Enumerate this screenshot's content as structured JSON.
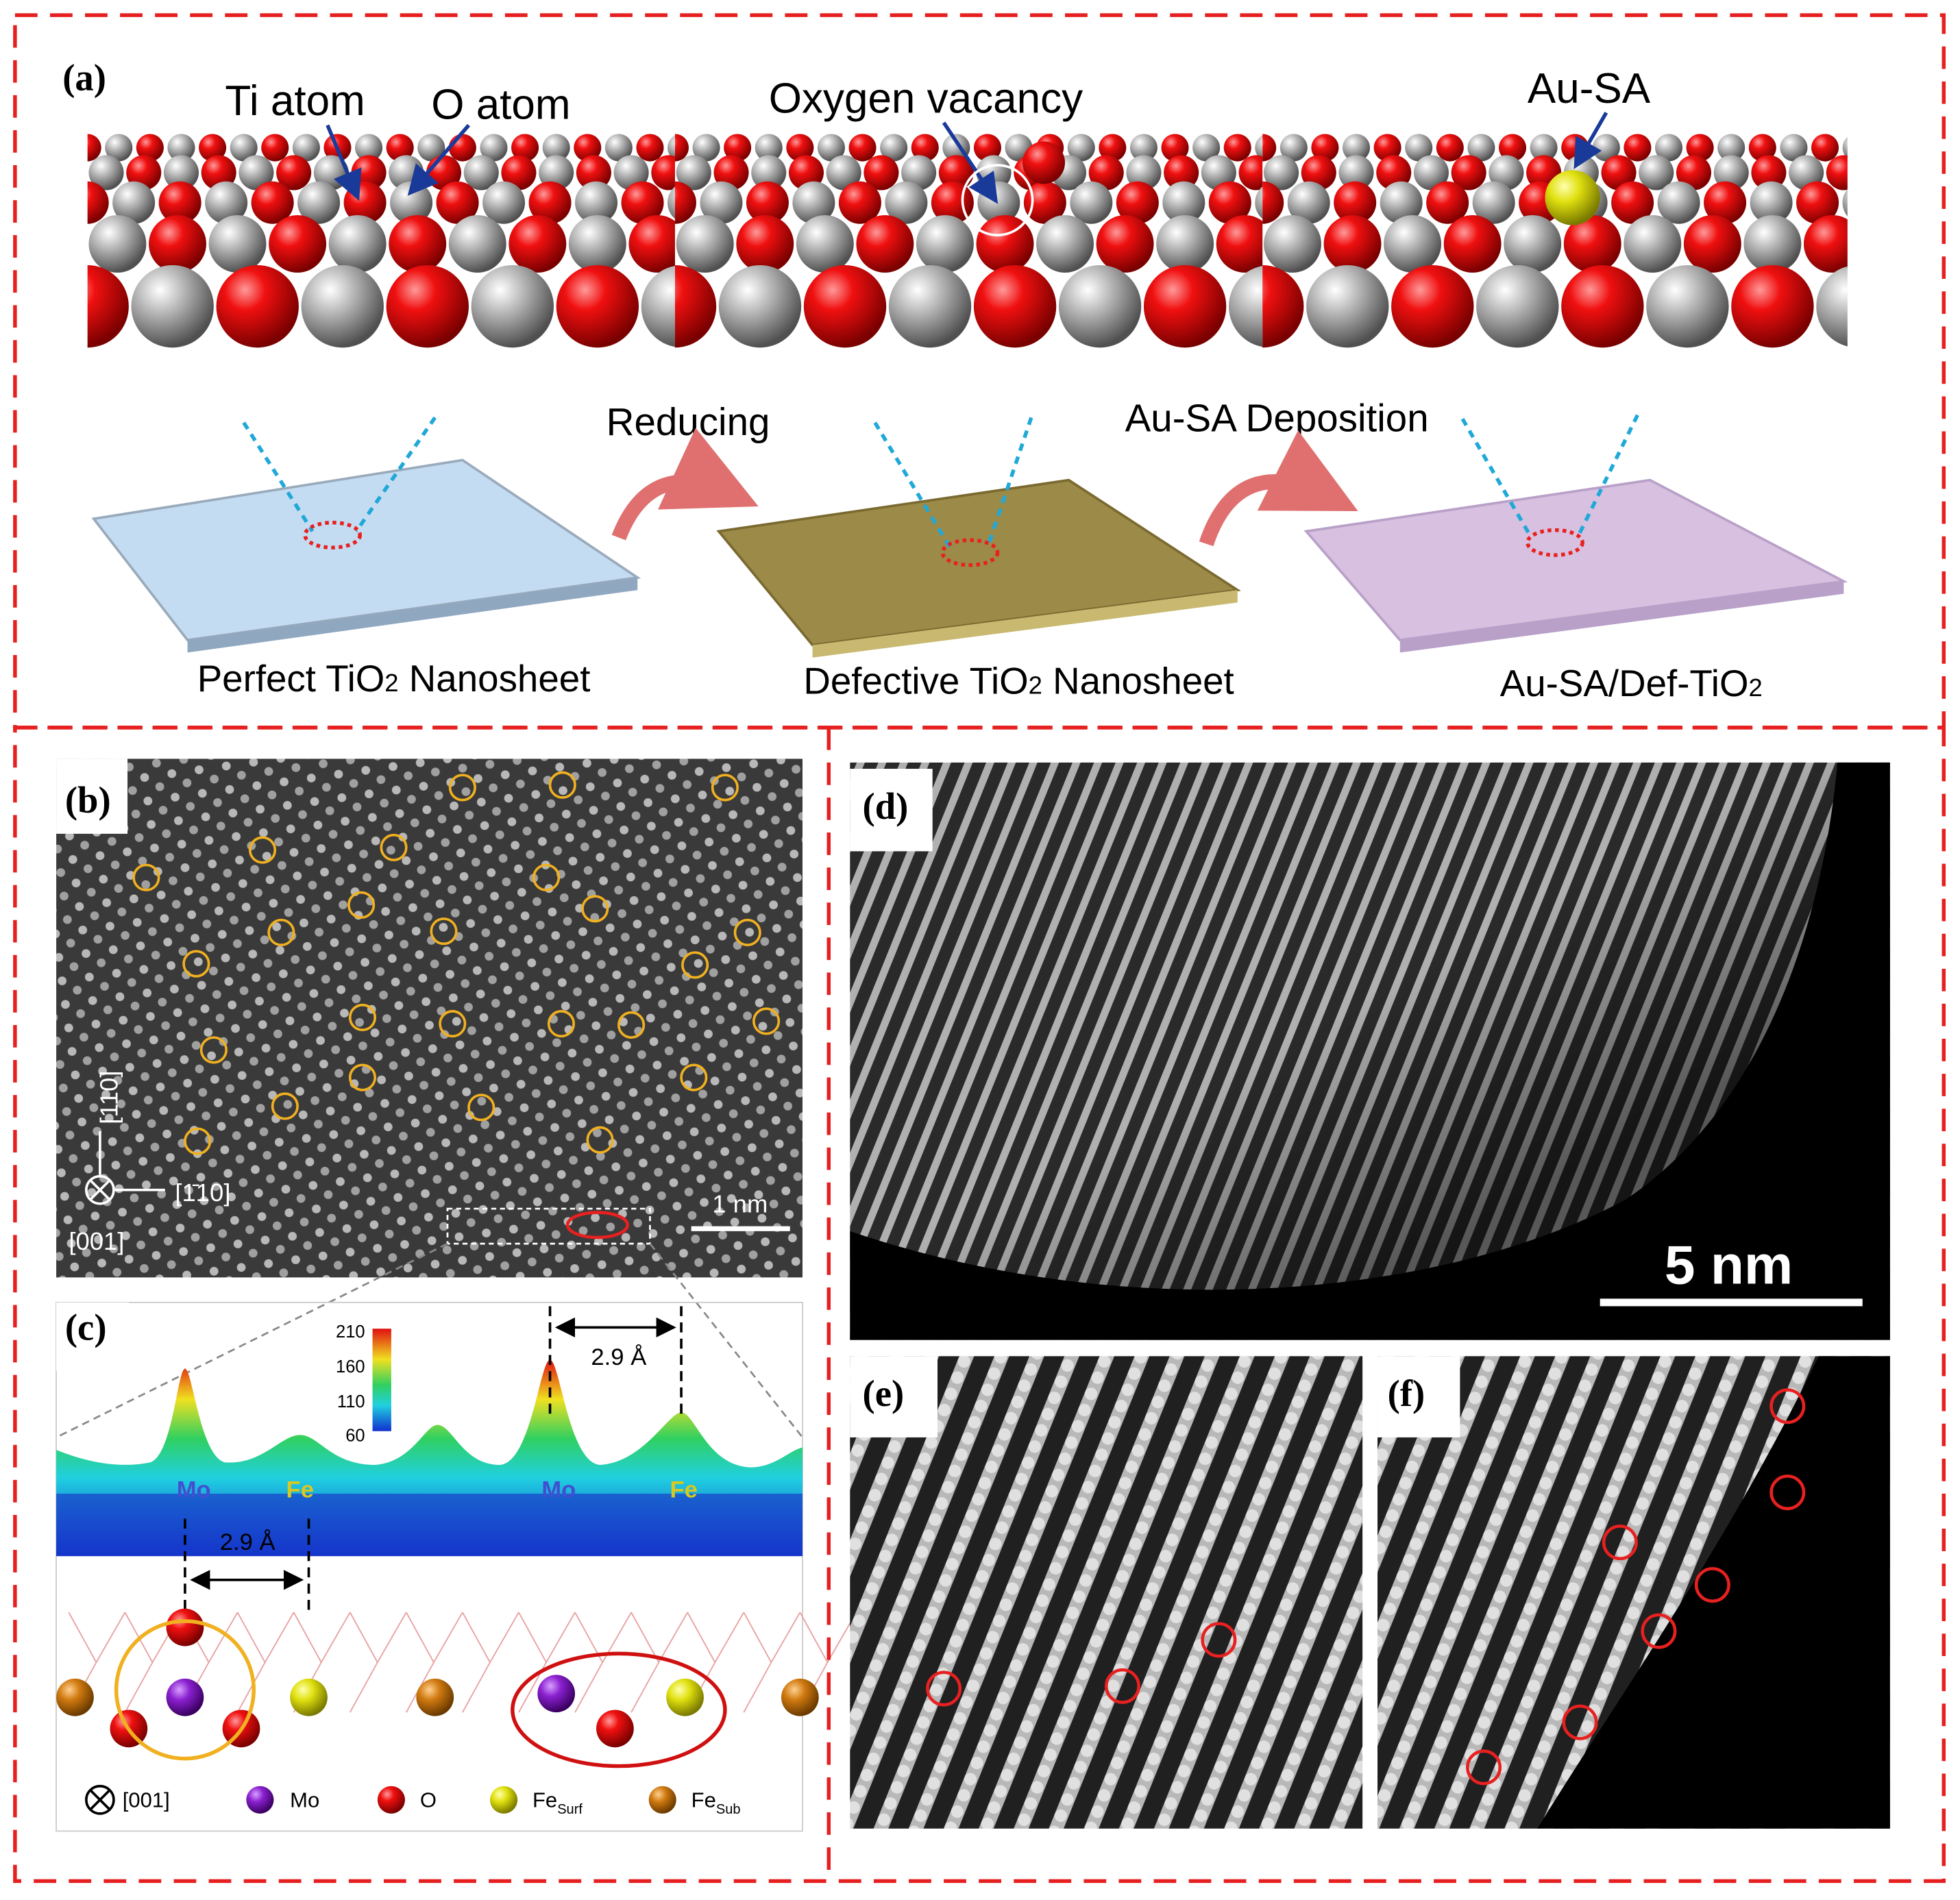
{
  "panel_a": {
    "label": "(a)",
    "ti_atom": "Ti atom",
    "o_atom": "O atom",
    "oxygen_vacancy": "Oxygen vacancy",
    "au_sa": "Au-SA",
    "reducing": "Reducing",
    "deposition": "Au-SA Deposition",
    "sheets": [
      {
        "text": "Perfect TiO",
        "sub": "2",
        "tail": " Nanosheet"
      },
      {
        "text": "Defective TiO",
        "sub": "2",
        "tail": " Nanosheet"
      },
      {
        "text": "Au-SA/Def-TiO",
        "sub": "2"
      }
    ]
  },
  "panel_b": {
    "label": "(b)",
    "dir_up": "[110]",
    "dir_right": "[1̄10]",
    "dir_in": "[001]",
    "scale": "1 nm"
  },
  "panel_c": {
    "label": "(c)",
    "colorbar": [
      210,
      160,
      110,
      60
    ],
    "peaks": [
      "Mo",
      "Fe",
      "Mo",
      "Fe"
    ],
    "distance_top": "2.9 Å",
    "distance_bottom": "2.9 Å",
    "legend": [
      {
        "text": "[001]"
      },
      {
        "text": "Mo"
      },
      {
        "text": "O"
      },
      {
        "text": "Fe",
        "sub": "Surf"
      },
      {
        "text": "Fe",
        "sub": "Sub"
      }
    ]
  },
  "panel_d": {
    "label": "(d)",
    "scale": "5 nm"
  },
  "panel_e": {
    "label": "(e)"
  },
  "panel_f": {
    "label": "(f)"
  }
}
